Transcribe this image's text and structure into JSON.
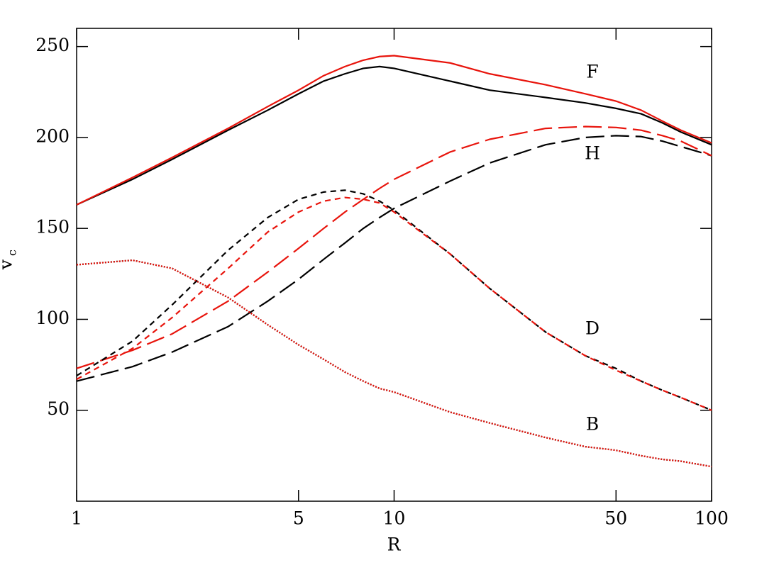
{
  "chart_data": {
    "type": "line",
    "xlabel": "R",
    "ylabel": "v",
    "ylabel_sub": "c",
    "xscale": "log",
    "xlim": [
      1,
      100
    ],
    "xticks": [
      1,
      5,
      10,
      50,
      100
    ],
    "ylim": [
      0,
      260
    ],
    "yticks": [
      50,
      100,
      150,
      200,
      250
    ],
    "grid": false,
    "x": [
      1,
      1.5,
      2,
      3,
      4,
      5,
      6,
      7,
      8,
      9,
      10,
      15,
      20,
      30,
      40,
      50,
      60,
      70,
      80,
      100
    ],
    "series": [
      {
        "color": "#000000",
        "style": "solid",
        "values": [
          163,
          177,
          188,
          204,
          215,
          224,
          231,
          235,
          238,
          239,
          238,
          231,
          226,
          222,
          219,
          216,
          213,
          208,
          203,
          196
        ]
      },
      {
        "color": "#e8140c",
        "style": "solid",
        "values": [
          163,
          178,
          189,
          205,
          217,
          226,
          234,
          239,
          242.5,
          244.5,
          245,
          241,
          235,
          229,
          224,
          220,
          215,
          209,
          204,
          197
        ]
      },
      {
        "color": "#000000",
        "style": "long-dash",
        "values": [
          66,
          74,
          82,
          96,
          110,
          122,
          133,
          142,
          150,
          156,
          161,
          176,
          186,
          196,
          200,
          201,
          200.5,
          198,
          195,
          190
        ]
      },
      {
        "color": "#e8140c",
        "style": "long-dash",
        "values": [
          73,
          83,
          92,
          110,
          126,
          139,
          150,
          159,
          166,
          172,
          177,
          192,
          199,
          205,
          206,
          205.5,
          204,
          201,
          198,
          190
        ]
      },
      {
        "color": "#000000",
        "style": "short-dash",
        "values": [
          69,
          88,
          108,
          138,
          156,
          166,
          170,
          171,
          169,
          165,
          160,
          136,
          117,
          93,
          80,
          73,
          66,
          61,
          57,
          50
        ]
      },
      {
        "color": "#e8140c",
        "style": "short-dash",
        "values": [
          67,
          84,
          101,
          128,
          148,
          159,
          165,
          167,
          166,
          164,
          159,
          136,
          117,
          93,
          80,
          72,
          66,
          61,
          57,
          50
        ]
      },
      {
        "color": "#000000",
        "style": "dotted",
        "values": [
          130,
          132.5,
          128,
          112,
          97,
          86,
          78,
          71,
          66,
          62,
          60,
          49,
          43,
          35,
          30,
          28,
          25,
          23,
          22,
          19
        ]
      },
      {
        "color": "#e8140c",
        "style": "dotted",
        "values": [
          130,
          132.5,
          128,
          112,
          97,
          86,
          78,
          71,
          66,
          62,
          60,
          49,
          43,
          35,
          30,
          28,
          25,
          23,
          22,
          19
        ]
      }
    ],
    "annotations": [
      "F",
      "H",
      "D",
      "B"
    ]
  }
}
